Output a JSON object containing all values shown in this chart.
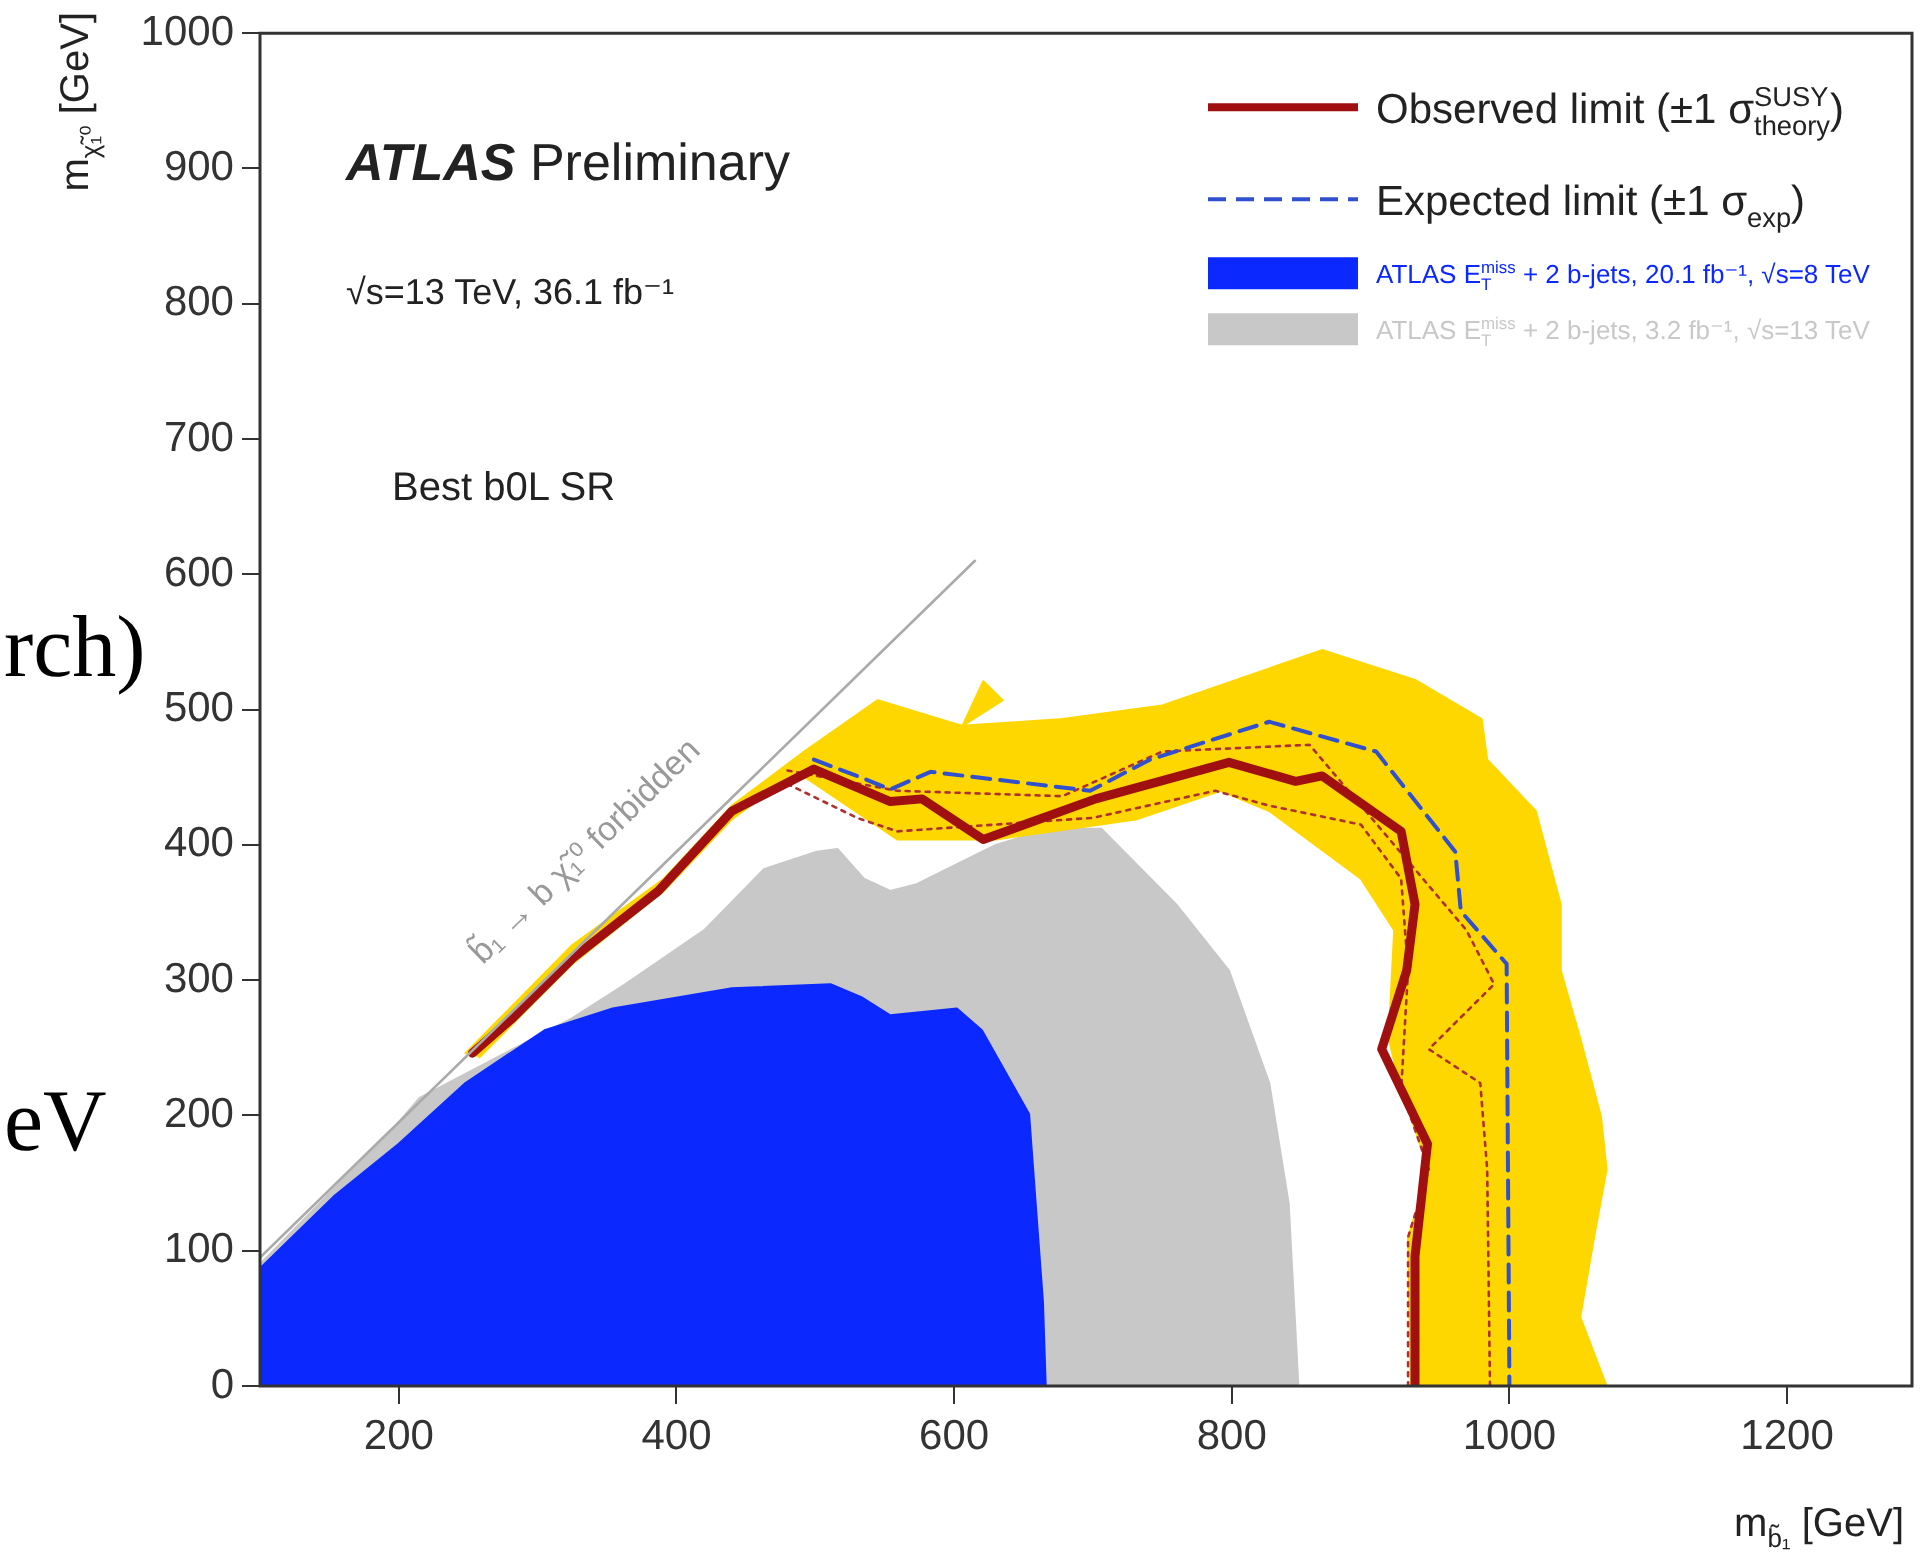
{
  "chart_data": {
    "type": "line",
    "title": "ATLAS Preliminary",
    "subtitle": "√s=13 TeV, 36.1 fb⁻¹",
    "xlabel": "m$_{b̃₁}$ [GeV]",
    "ylabel": "m$_{χ̃₁⁰}$ [GeV]",
    "xlim": [
      100,
      1290
    ],
    "ylim": [
      0,
      1000
    ],
    "xticks": [
      200,
      400,
      600,
      800,
      1000,
      1200
    ],
    "yticks": [
      0,
      100,
      200,
      300,
      400,
      500,
      600,
      700,
      800,
      900,
      1000
    ],
    "legend": "top right",
    "marker": "none",
    "annotations": [
      "Best b0L SR",
      "b̃₁ → b χ̃₁⁰ forbidden",
      "rch)",
      "eV"
    ],
    "series": [
      {
        "name": "ATLAS E$_{T}$$^{miss}$ + 2 b-jets, 3.2 fb⁻¹, √s=13 TeV",
        "type": "area",
        "color": "#c8c8c8",
        "x": [
          100,
          100,
          200,
          215,
          325,
          363,
          420,
          463,
          501,
          516,
          535,
          554,
          573,
          630,
          669,
          706,
          760,
          798,
          827,
          841,
          848
        ],
        "values": [
          0,
          90,
          195,
          213,
          272,
          297,
          337,
          382,
          395,
          397,
          375,
          366,
          371,
          400,
          412,
          412,
          356,
          307,
          224,
          135,
          0
        ]
      },
      {
        "name": "ATLAS E$_{T}$$^{miss}$ + 2 b-jets, 20.1 fb⁻¹, √s=8 TeV",
        "type": "area",
        "color": "#0a28ff",
        "x": [
          100,
          100,
          153,
          200,
          248,
          305,
          354,
          440,
          511,
          534,
          554,
          602,
          620,
          654,
          664,
          666
        ],
        "values": [
          0,
          87,
          140,
          179,
          224,
          263,
          279,
          294,
          297,
          287,
          274,
          279,
          263,
          201,
          62,
          0
        ]
      },
      {
        "type": "area",
        "color": "#ffd700",
        "x": [
          248,
          325,
          391,
          440,
          492,
          545,
          606,
          621,
          635,
          606,
          678,
          750,
          865,
          932,
          980,
          984,
          1019,
          1037,
          1037,
          1051,
          1066,
          1070,
          1061,
          1051,
          1070,
          929,
          927,
          942,
          922,
          913,
          917,
          893,
          827,
          792,
          732,
          630,
          559,
          487,
          440,
          391,
          325,
          258
        ],
        "values": [
          246,
          326,
          375,
          429,
          469,
          507,
          488,
          521,
          507,
          488,
          493,
          503,
          544,
          522,
          493,
          463,
          425,
          356,
          307,
          257,
          199,
          160,
          110,
          51,
          0,
          0,
          110,
          160,
          219,
          257,
          337,
          375,
          425,
          440,
          419,
          404,
          404,
          454,
          419,
          366,
          312,
          243
        ]
      },
      {
        "color": "#b03030",
        "line_style": "dotted",
        "x": [
          480,
          559,
          678,
          750,
          856,
          969,
          989,
          942,
          979,
          984,
          986
        ],
        "values": [
          455,
          440,
          436,
          469,
          474,
          337,
          297,
          249,
          224,
          160,
          0
        ]
      },
      {
        "color": "#b03030",
        "line_style": "dotted",
        "x": [
          480,
          530,
          559,
          700,
          788,
          827,
          893,
          922,
          927,
          922,
          942,
          927,
          927
        ],
        "values": [
          445,
          420,
          410,
          420,
          440,
          429,
          415,
          375,
          307,
          219,
          160,
          110,
          0
        ]
      },
      {
        "name": "Expected limit (±1 σ$_{exp}$)",
        "color": "#3050d0",
        "line_style": "dashed",
        "x": [
          499,
          535,
          554,
          583,
          698,
          741,
          827,
          904,
          961,
          965,
          998,
          1000
        ],
        "values": [
          463,
          449,
          441,
          454,
          440,
          463,
          491,
          469,
          395,
          351,
          312,
          0
        ]
      },
      {
        "name": "Observed limit (±1 σ$^{SUSY}$$_{theory}$)",
        "color": "#a01010",
        "line_style": "solid",
        "x": [
          253,
          282,
          325,
          387,
          440,
          499,
          554,
          577,
          621,
          702,
          798,
          846,
          865,
          922,
          932,
          926,
          908,
          941,
          932,
          932
        ],
        "values": [
          246,
          272,
          316,
          366,
          425,
          456,
          432,
          434,
          404,
          434,
          461,
          447,
          451,
          410,
          356,
          307,
          249,
          179,
          96,
          0
        ]
      },
      {
        "color": "#aaaaaa",
        "line_style": "solid",
        "x": [
          100,
          615
        ],
        "values": [
          95,
          610
        ]
      }
    ]
  }
}
